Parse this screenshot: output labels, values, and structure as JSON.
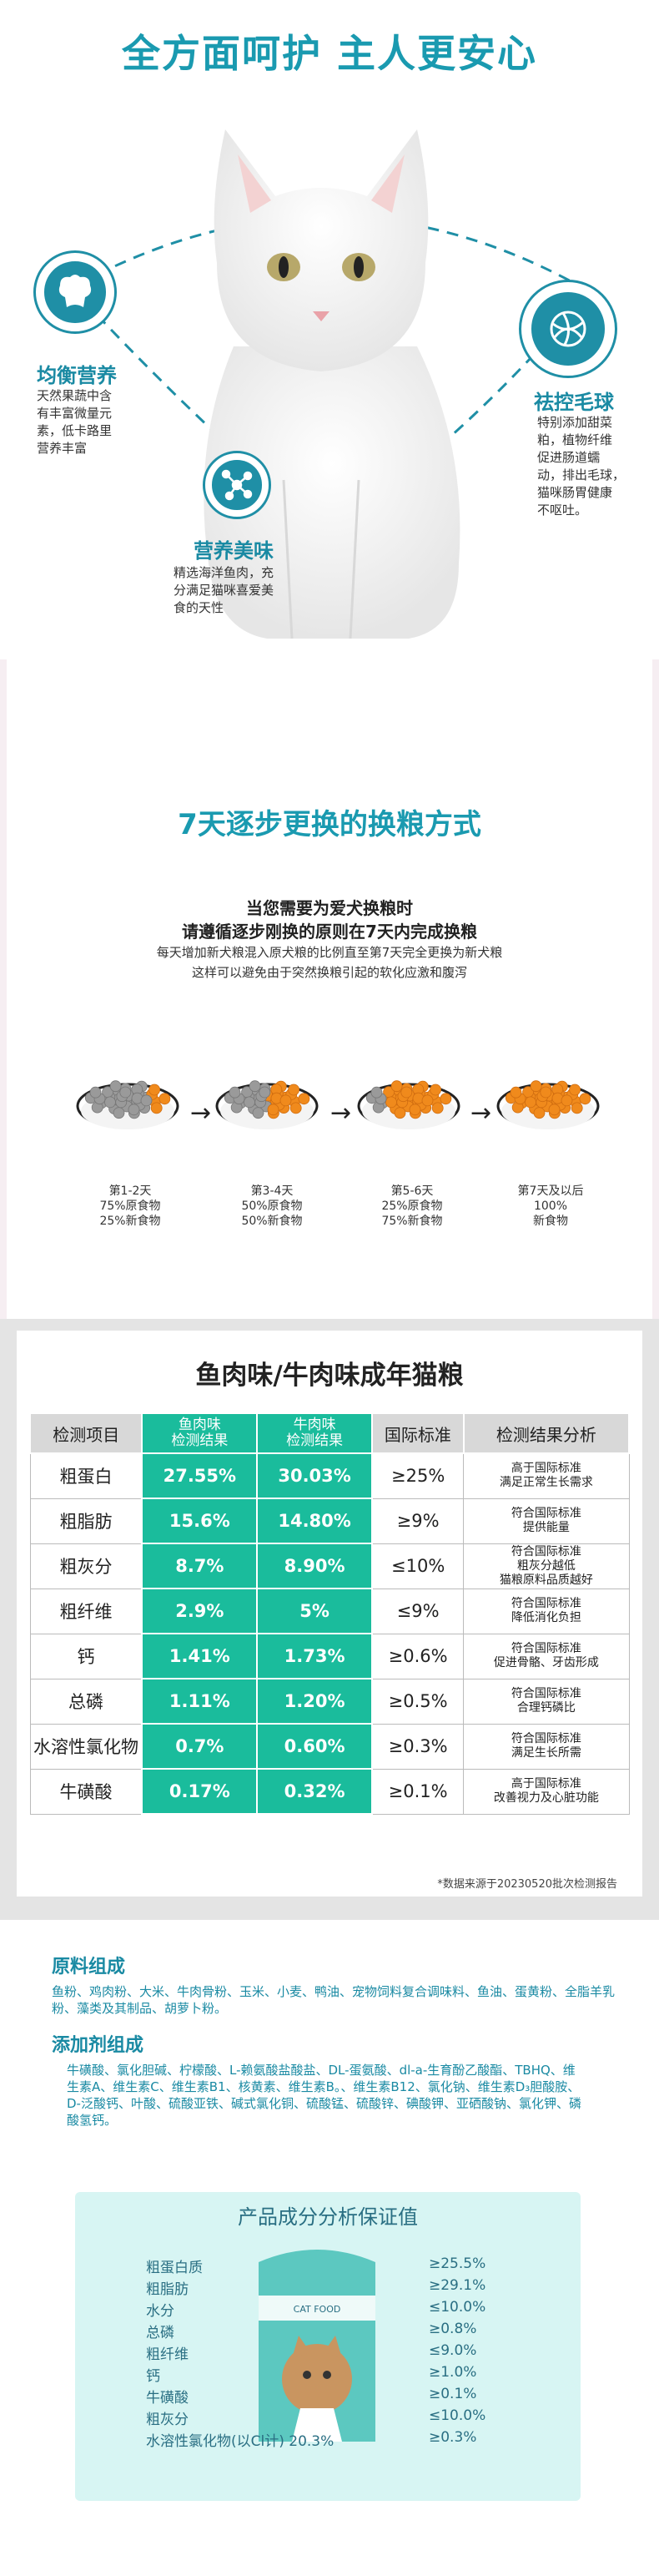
{
  "hero": {
    "title": "全方面呵护 主人更安心",
    "features": [
      {
        "title": "均衡营养",
        "desc": [
          "天然果蔬中含",
          "有丰富微量元",
          "素，低卡路里",
          "营养丰富"
        ]
      },
      {
        "title": "营养美味",
        "desc": [
          "精选海洋鱼肉，充",
          "分满足猫咪喜爱美",
          "食的天性"
        ]
      },
      {
        "title": "祛控毛球",
        "desc": [
          "特别添加甜菜",
          "粕，植物纤维",
          "促进肠道蠕",
          "动，排出毛球，",
          "猫咪肠胃健康",
          "不呕吐。"
        ]
      }
    ]
  },
  "transition": {
    "title": "7天逐步更换的换粮方式",
    "heading1": "当您需要为爱犬换粮时",
    "heading2": "请遵循逐步刚换的原则在7天内完成换粮",
    "para1": "每天增加新犬粮混入原犬粮的比例直至第7天完全更换为新犬粮",
    "para2": "这样可以避免由于突然换粮引起的软化应激和腹泻",
    "stages": [
      {
        "days": "第1-2天",
        "l1": "75%原食物",
        "l2": "25%新食物",
        "new": 0.25
      },
      {
        "days": "第3-4天",
        "l1": "50%原食物",
        "l2": "50%新食物",
        "new": 0.5
      },
      {
        "days": "第5-6天",
        "l1": "25%原食物",
        "l2": "75%新食物",
        "new": 0.75
      },
      {
        "days": "第7天及以后",
        "l1": "100%",
        "l2": "新食物",
        "new": 1.0
      }
    ]
  },
  "table": {
    "title": "鱼肉味/牛肉味成年猫粮",
    "headers": [
      "检测项目",
      "鱼肉味\n检测结果",
      "牛肉味\n检测结果",
      "国际标准",
      "检测结果分析"
    ],
    "rows": [
      [
        "粗蛋白",
        "27.55%",
        "30.03%",
        "≥25%",
        "高于国际标准\n满足正常生长需求"
      ],
      [
        "粗脂肪",
        "15.6%",
        "14.80%",
        "≥9%",
        "符合国际标准\n提供能量"
      ],
      [
        "粗灰分",
        "8.7%",
        "8.90%",
        "≤10%",
        "符合国际标准\n粗灰分越低\n猫粮原料品质越好"
      ],
      [
        "粗纤维",
        "2.9%",
        "5%",
        "≤9%",
        "符合国际标准\n降低消化负担"
      ],
      [
        "钙",
        "1.41%",
        "1.73%",
        "≥0.6%",
        "符合国际标准\n促进骨骼、牙齿形成"
      ],
      [
        "总磷",
        "1.11%",
        "1.20%",
        "≥0.5%",
        "符合国际标准\n合理钙磷比"
      ],
      [
        "水溶性氯化物",
        "0.7%",
        "0.60%",
        "≥0.3%",
        "符合国际标准\n满足生长所需"
      ],
      [
        "牛磺酸",
        "0.17%",
        "0.32%",
        "≥0.1%",
        "高于国际标准\n改善视力及心脏功能"
      ]
    ],
    "note": "*数据来源于20230520批次检测报告"
  },
  "ingredients": {
    "raw_title": "原料组成",
    "raw_text": "鱼粉、鸡肉粉、大米、牛肉骨粉、玉米、小麦、鸭油、宠物饲料复合调味料、鱼油、蛋黄粉、全脂羊乳粉、藻类及其制品、胡萝卜粉。",
    "add_title": "添加剂组成",
    "add_text": "牛磺酸、氯化胆碱、柠檬酸、L-赖氨酸盐酸盐、DL-蛋氨酸、dl-a-生育酚乙酸酯、TBHQ、维生素A、维生素C、维生素B1、核黄素、维生素B。、维生素B12、氯化钠、维生素D₃胆酸胺、D-泛酸钙、叶酸、硫酸亚铁、碱式氯化铜、硫酸锰、硫酸锌、碘酸钾、亚硒酸钠、氯化钾、磷酸氢钙。",
    "guarantee_title": "产品成分分析保证值",
    "guarantee": [
      [
        "粗蛋白质",
        "≥25.5%"
      ],
      [
        "粗脂肪",
        "≥29.1%"
      ],
      [
        "水分",
        "≤10.0%"
      ],
      [
        "总磷",
        "≥0.8%"
      ],
      [
        "粗纤维",
        "≤9.0%"
      ],
      [
        "钙",
        "≥1.0%"
      ],
      [
        "牛磺酸",
        "≥0.1%"
      ],
      [
        "粗灰分",
        "≤10.0%"
      ],
      [
        "水溶性氯化物(以Cl计) 20.3%",
        "≥0.3%"
      ]
    ]
  },
  "colors": {
    "accent": "#1a9ab0",
    "teal_cell": "#1abc9c",
    "orange_food": "#f08a1c"
  }
}
